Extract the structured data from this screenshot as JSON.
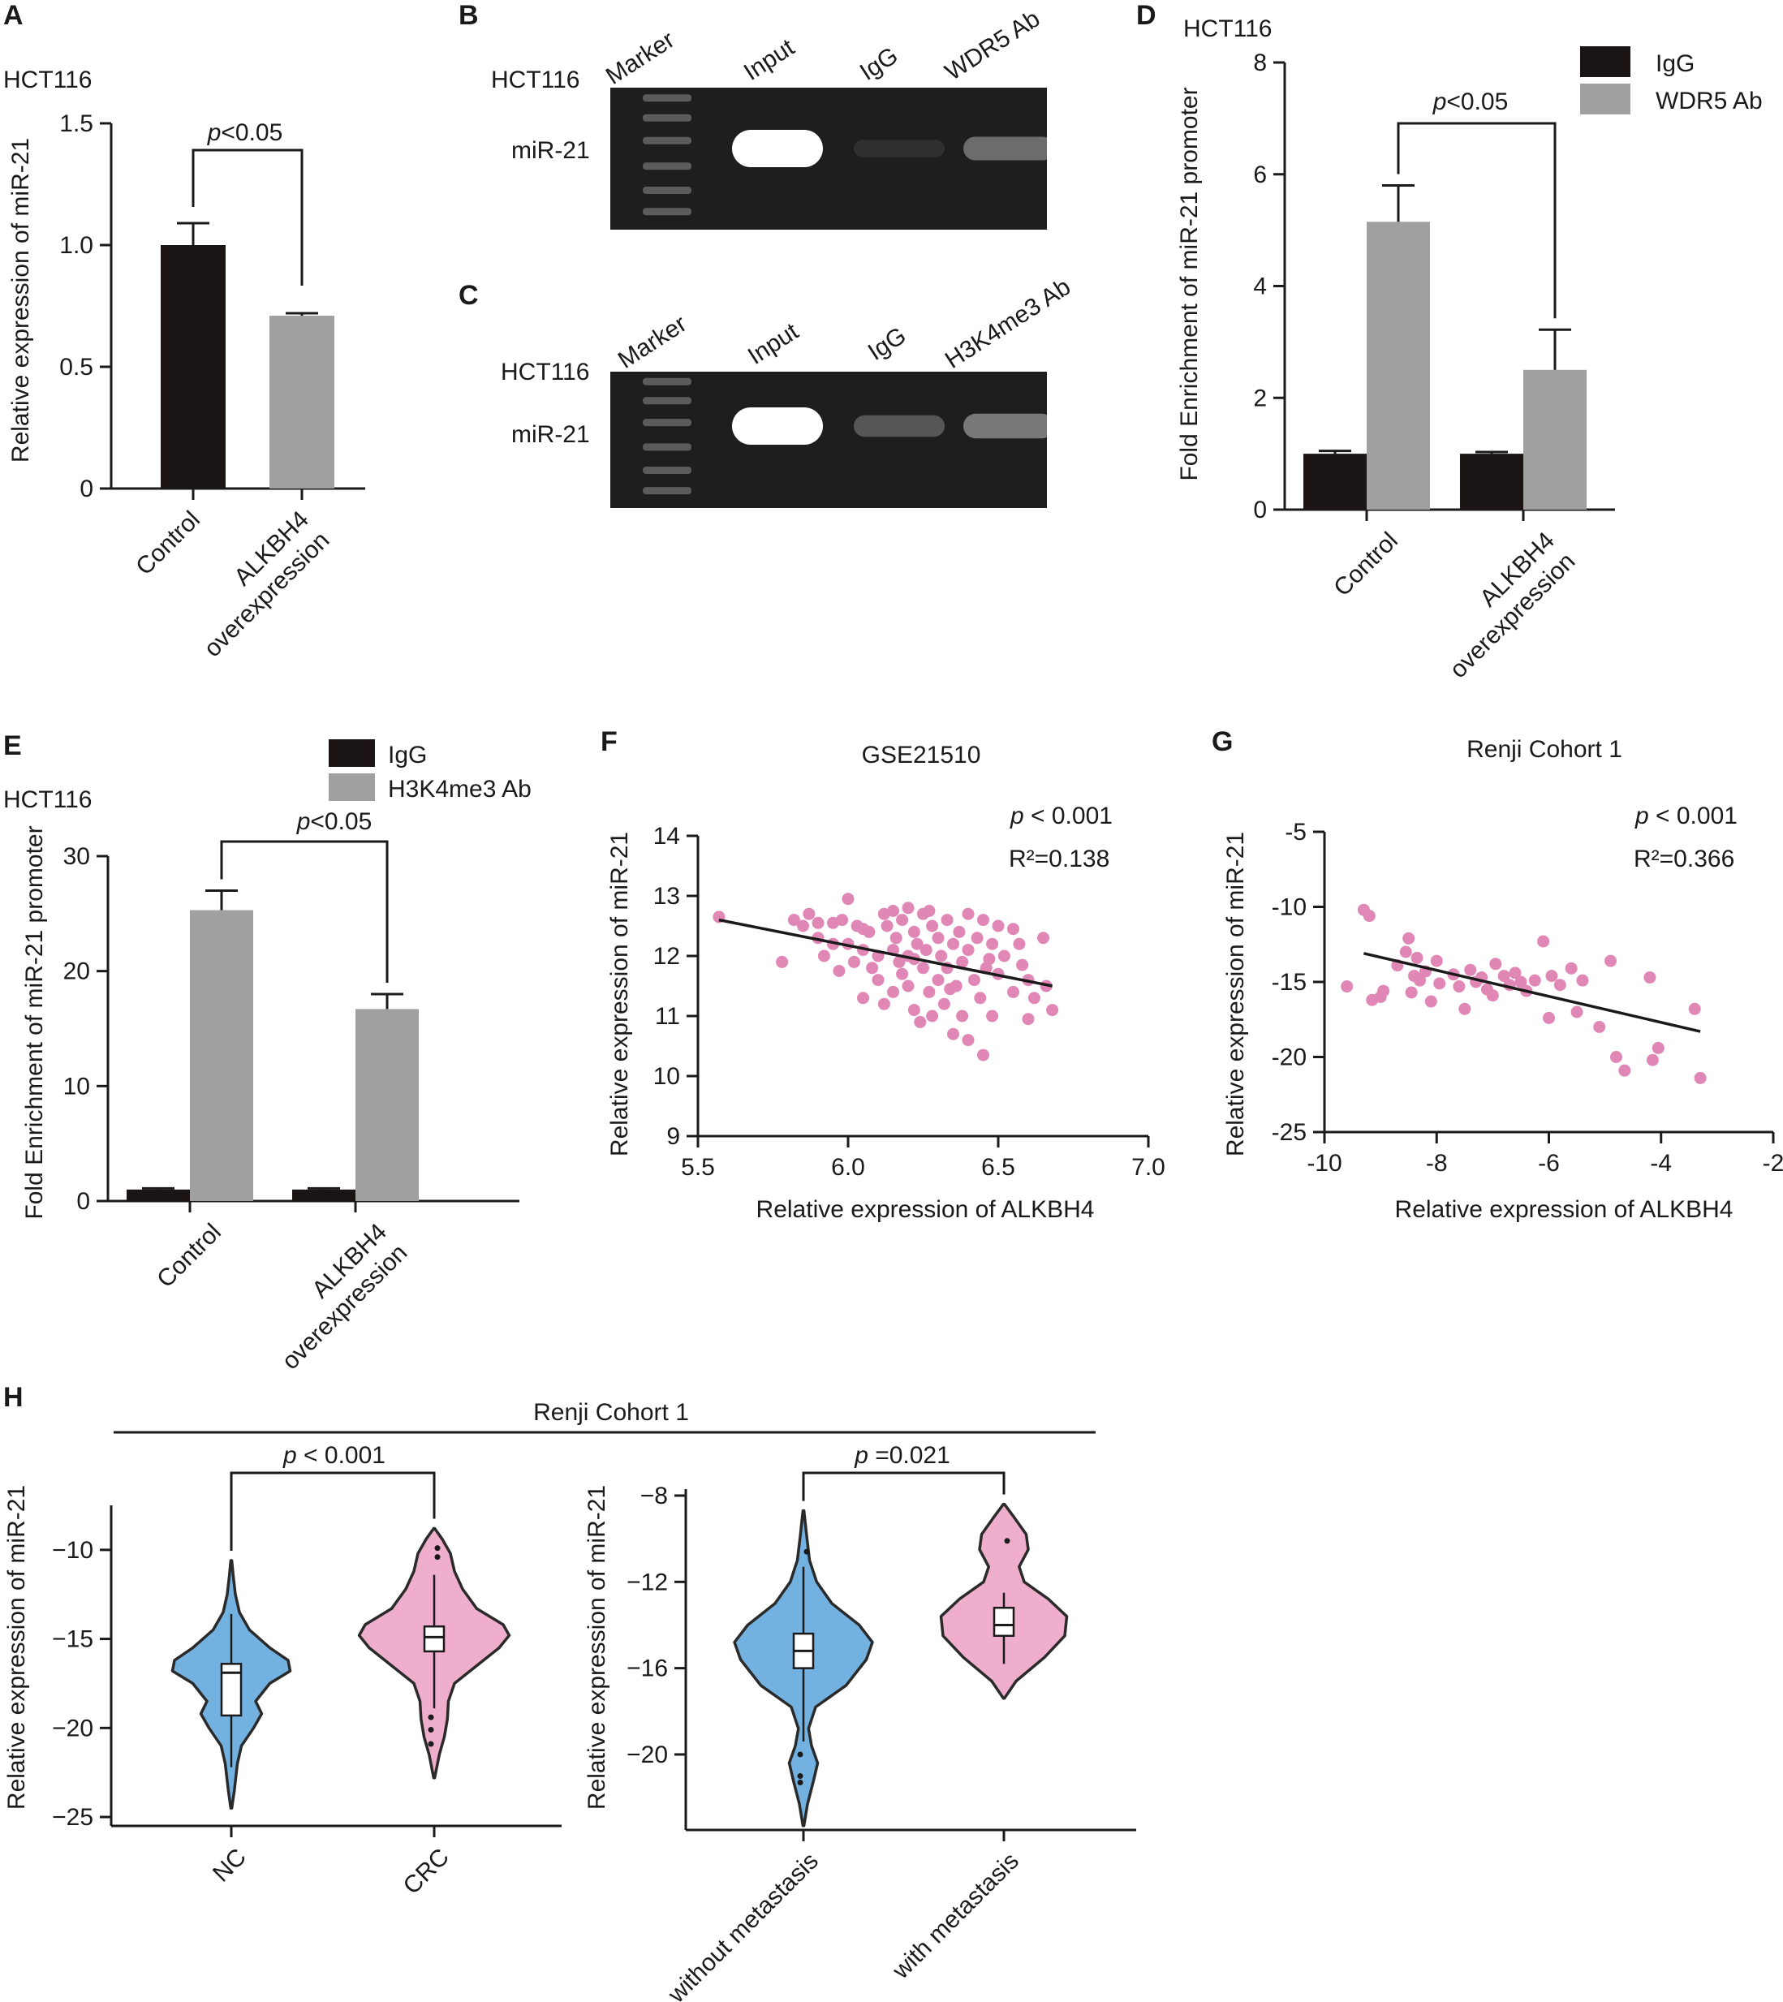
{
  "colors": {
    "black_bar": "#1a1414",
    "gray_bar": "#a0a0a0",
    "pink_point": "#e087b6",
    "violin_blue": "#73b2e0",
    "violin_pink": "#eeaecc",
    "gel_bg": "#1e1e1e",
    "band": "#ffffff"
  },
  "panelA": {
    "letter": "A",
    "cell_line": "HCT116",
    "pvalue": "p<0.05",
    "chart_data": {
      "type": "bar",
      "categories": [
        "Control",
        "ALKBH4 overexpression"
      ],
      "values": [
        1.0,
        0.71
      ],
      "errors": [
        0.09,
        0.01
      ],
      "ylabel": "Relative expression of miR-21",
      "ylim": [
        0,
        1.5
      ],
      "yticks": [
        0,
        0.5,
        1.0,
        1.5
      ],
      "ytick_labels": [
        "0",
        "0.5",
        "1.0",
        "1.5"
      ]
    },
    "xlabels": [
      [
        "Control"
      ],
      [
        "ALKBH4",
        "overexpression"
      ]
    ]
  },
  "panelB": {
    "letter": "B",
    "cell_line": "HCT116",
    "row_label": "miR-21",
    "lanes": [
      "Marker",
      "Input",
      "IgG",
      "WDR5 Ab"
    ],
    "band_intensity": [
      0,
      1.0,
      0.05,
      0.35
    ]
  },
  "panelC": {
    "letter": "C",
    "cell_line": "HCT116",
    "row_label": "miR-21",
    "lanes": [
      "Marker",
      "Input",
      "IgG",
      "H3K4me3 Ab"
    ],
    "band_intensity": [
      0,
      1.0,
      0.25,
      0.4
    ]
  },
  "panelD": {
    "letter": "D",
    "cell_line": "HCT116",
    "pvalue": "p<0.05",
    "chart_data": {
      "type": "bar",
      "categories": [
        "Control",
        "ALKBH4 overexpression"
      ],
      "series": [
        {
          "name": "IgG",
          "values": [
            1.0,
            1.0
          ],
          "errors": [
            0.05,
            0.03
          ]
        },
        {
          "name": "WDR5 Ab",
          "values": [
            5.15,
            2.5
          ],
          "errors": [
            0.65,
            0.72
          ]
        }
      ],
      "ylabel": "Fold Enrichment of miR-21 promoter",
      "ylim": [
        0,
        8
      ],
      "yticks": [
        0,
        2,
        4,
        6,
        8
      ],
      "ytick_labels": [
        "0",
        "2",
        "4",
        "6",
        "8"
      ],
      "legend": "top-right"
    },
    "xlabels": [
      [
        "Control"
      ],
      [
        "ALKBH4",
        "overexpression"
      ]
    ]
  },
  "panelE": {
    "letter": "E",
    "cell_line": "HCT116",
    "pvalue": "p<0.05",
    "chart_data": {
      "type": "bar",
      "categories": [
        "Control",
        "ALKBH4 overexpression"
      ],
      "series": [
        {
          "name": "IgG",
          "values": [
            1.0,
            1.0
          ],
          "errors": [
            0.1,
            0.1
          ]
        },
        {
          "name": "H3K4me3 Ab",
          "values": [
            25.3,
            16.7
          ],
          "errors": [
            1.7,
            1.3
          ]
        }
      ],
      "ylabel": "Fold Enrichment of miR-21 promoter",
      "ylim": [
        0,
        30
      ],
      "yticks": [
        0,
        10,
        20,
        30
      ],
      "ytick_labels": [
        "0",
        "10",
        "20",
        "30"
      ],
      "legend": "top"
    },
    "xlabels": [
      [
        "Control"
      ],
      [
        "ALKBH4",
        "overexpression"
      ]
    ]
  },
  "panelF": {
    "letter": "F",
    "chart_data": {
      "type": "scatter",
      "title": "GSE21510",
      "pvalue": "p < 0.001",
      "r2": "R²=0.138",
      "xlabel": "Relative expression of ALKBH4",
      "ylabel": "Relative expression of miR-21",
      "xlim": [
        5.5,
        7.0
      ],
      "ylim": [
        9,
        14
      ],
      "xticks": [
        5.5,
        6.0,
        6.5,
        7.0
      ],
      "xtick_labels": [
        "5.5",
        "6.0",
        "6.5",
        "7.0"
      ],
      "yticks": [
        9,
        10,
        11,
        12,
        13,
        14
      ],
      "ytick_labels": [
        "9",
        "10",
        "11",
        "12",
        "13",
        "14"
      ],
      "fit_line": [
        [
          5.57,
          12.6
        ],
        [
          6.68,
          11.5
        ]
      ],
      "points": [
        [
          5.57,
          12.65
        ],
        [
          5.78,
          11.9
        ],
        [
          5.82,
          12.6
        ],
        [
          5.85,
          12.5
        ],
        [
          5.87,
          12.7
        ],
        [
          5.9,
          12.55
        ],
        [
          5.9,
          12.3
        ],
        [
          5.92,
          12.0
        ],
        [
          5.95,
          12.55
        ],
        [
          5.95,
          12.2
        ],
        [
          5.98,
          12.6
        ],
        [
          6.0,
          12.95
        ],
        [
          6.0,
          12.2
        ],
        [
          6.02,
          11.9
        ],
        [
          6.03,
          12.5
        ],
        [
          6.05,
          12.1
        ],
        [
          6.05,
          11.3
        ],
        [
          6.07,
          12.4
        ],
        [
          6.08,
          11.8
        ],
        [
          6.1,
          12.0
        ],
        [
          6.1,
          11.6
        ],
        [
          6.12,
          12.7
        ],
        [
          6.12,
          11.2
        ],
        [
          6.13,
          12.5
        ],
        [
          6.15,
          12.1
        ],
        [
          6.15,
          11.4
        ],
        [
          6.16,
          12.3
        ],
        [
          6.17,
          11.9
        ],
        [
          6.18,
          12.6
        ],
        [
          6.18,
          11.7
        ],
        [
          6.2,
          12.8
        ],
        [
          6.2,
          12.0
        ],
        [
          6.2,
          11.5
        ],
        [
          6.22,
          12.4
        ],
        [
          6.22,
          11.1
        ],
        [
          6.23,
          12.2
        ],
        [
          6.24,
          10.9
        ],
        [
          6.25,
          12.7
        ],
        [
          6.25,
          11.8
        ],
        [
          6.26,
          12.1
        ],
        [
          6.27,
          11.4
        ],
        [
          6.28,
          12.5
        ],
        [
          6.28,
          11.0
        ],
        [
          6.3,
          12.3
        ],
        [
          6.3,
          11.6
        ],
        [
          6.31,
          12.0
        ],
        [
          6.32,
          11.2
        ],
        [
          6.33,
          12.6
        ],
        [
          6.33,
          11.8
        ],
        [
          6.35,
          12.2
        ],
        [
          6.35,
          10.7
        ],
        [
          6.36,
          11.5
        ],
        [
          6.37,
          12.4
        ],
        [
          6.38,
          11.9
        ],
        [
          6.38,
          11.0
        ],
        [
          6.4,
          12.7
        ],
        [
          6.4,
          12.1
        ],
        [
          6.4,
          10.6
        ],
        [
          6.42,
          11.6
        ],
        [
          6.43,
          12.3
        ],
        [
          6.44,
          11.3
        ],
        [
          6.45,
          12.6
        ],
        [
          6.45,
          10.35
        ],
        [
          6.46,
          11.8
        ],
        [
          6.48,
          12.2
        ],
        [
          6.48,
          11.0
        ],
        [
          6.5,
          11.7
        ],
        [
          6.5,
          12.5
        ],
        [
          6.52,
          12.0
        ],
        [
          6.55,
          11.4
        ],
        [
          6.57,
          12.2
        ],
        [
          6.6,
          11.6
        ],
        [
          6.6,
          10.95
        ],
        [
          6.62,
          11.3
        ],
        [
          6.65,
          12.3
        ],
        [
          6.66,
          11.5
        ],
        [
          6.68,
          11.1
        ],
        [
          6.55,
          12.45
        ],
        [
          6.27,
          12.75
        ],
        [
          6.15,
          12.75
        ],
        [
          6.05,
          12.45
        ],
        [
          5.97,
          11.75
        ],
        [
          6.22,
          11.95
        ],
        [
          6.34,
          11.45
        ],
        [
          6.47,
          11.95
        ],
        [
          6.58,
          11.85
        ]
      ]
    }
  },
  "panelG": {
    "letter": "G",
    "chart_data": {
      "type": "scatter",
      "title": "Renji Cohort 1",
      "pvalue": "p < 0.001",
      "r2": "R²=0.366",
      "xlabel": "Relative expression of ALKBH4",
      "ylabel": "Relative expression of miR-21",
      "xlim": [
        -10,
        -2
      ],
      "ylim": [
        -25,
        -5
      ],
      "xticks": [
        -10,
        -8,
        -6,
        -4,
        -2
      ],
      "xtick_labels": [
        "-10",
        "-8",
        "-6",
        "-4",
        "-2"
      ],
      "yticks": [
        -25,
        -20,
        -15,
        -10,
        -5
      ],
      "ytick_labels": [
        "-25",
        "-20",
        "-15",
        "-10",
        "-5"
      ],
      "fit_line": [
        [
          -9.3,
          -13.1
        ],
        [
          -3.3,
          -18.3
        ]
      ],
      "points": [
        [
          -9.6,
          -15.3
        ],
        [
          -9.3,
          -10.2
        ],
        [
          -9.2,
          -10.6
        ],
        [
          -9.15,
          -16.2
        ],
        [
          -9.0,
          -16.0
        ],
        [
          -8.95,
          -15.6
        ],
        [
          -8.7,
          -13.9
        ],
        [
          -8.55,
          -13.0
        ],
        [
          -8.5,
          -12.1
        ],
        [
          -8.45,
          -15.7
        ],
        [
          -8.4,
          -14.6
        ],
        [
          -8.35,
          -13.4
        ],
        [
          -8.3,
          -14.9
        ],
        [
          -8.2,
          -14.3
        ],
        [
          -8.1,
          -16.3
        ],
        [
          -8.0,
          -13.6
        ],
        [
          -7.95,
          -15.1
        ],
        [
          -7.7,
          -14.5
        ],
        [
          -7.6,
          -15.3
        ],
        [
          -7.5,
          -16.8
        ],
        [
          -7.4,
          -14.2
        ],
        [
          -7.3,
          -15.0
        ],
        [
          -7.2,
          -14.7
        ],
        [
          -7.1,
          -15.5
        ],
        [
          -7.0,
          -15.9
        ],
        [
          -6.95,
          -13.8
        ],
        [
          -6.8,
          -14.6
        ],
        [
          -6.7,
          -15.2
        ],
        [
          -6.6,
          -14.4
        ],
        [
          -6.5,
          -15.0
        ],
        [
          -6.4,
          -15.6
        ],
        [
          -6.25,
          -14.9
        ],
        [
          -6.1,
          -12.3
        ],
        [
          -6.0,
          -17.4
        ],
        [
          -5.95,
          -14.6
        ],
        [
          -5.8,
          -15.2
        ],
        [
          -5.6,
          -14.1
        ],
        [
          -5.5,
          -17.0
        ],
        [
          -5.4,
          -14.9
        ],
        [
          -5.1,
          -18.0
        ],
        [
          -4.9,
          -13.6
        ],
        [
          -4.8,
          -20.0
        ],
        [
          -4.65,
          -20.9
        ],
        [
          -4.2,
          -14.7
        ],
        [
          -4.15,
          -20.2
        ],
        [
          -4.05,
          -19.4
        ],
        [
          -3.4,
          -16.8
        ],
        [
          -3.3,
          -21.4
        ]
      ]
    }
  },
  "panelH": {
    "letter": "H",
    "title": "Renji Cohort 1",
    "charts": [
      {
        "type": "violin",
        "pvalue": "p < 0.001",
        "ylabel": "Relative expression of miR-21",
        "ylim": [
          -25.5,
          -7.5
        ],
        "yticks": [
          -25,
          -20,
          -15,
          -10
        ],
        "ytick_labels": [
          "−25",
          "−20",
          "−15",
          "−10"
        ],
        "categories": [
          "NC",
          "CRC"
        ],
        "groups": [
          {
            "name": "NC",
            "q1": -19.3,
            "median": -16.9,
            "q3": -16.4,
            "whisker_low": -22.2,
            "whisker_high": -13.6,
            "outliers": [],
            "range": [
              -24.5,
              -10.6
            ],
            "profile": [
              [
                -24.5,
                0.005
              ],
              [
                -23.5,
                0.03
              ],
              [
                -22,
                0.06
              ],
              [
                -21,
                0.1
              ],
              [
                -20,
                0.22
              ],
              [
                -19.2,
                0.3
              ],
              [
                -18.5,
                0.24
              ],
              [
                -17.5,
                0.38
              ],
              [
                -16.8,
                0.58
              ],
              [
                -16.2,
                0.56
              ],
              [
                -15.5,
                0.38
              ],
              [
                -14.5,
                0.18
              ],
              [
                -13.5,
                0.08
              ],
              [
                -12.5,
                0.04
              ],
              [
                -11.5,
                0.02
              ],
              [
                -10.6,
                0.005
              ]
            ]
          },
          {
            "name": "CRC",
            "q1": -15.7,
            "median": -14.9,
            "q3": -14.3,
            "whisker_low": -18.9,
            "whisker_high": -11.4,
            "outliers": [
              -9.9,
              -10.4,
              -19.4,
              -20.1,
              -20.9
            ],
            "range": [
              -22.8,
              -8.8
            ],
            "profile": [
              [
                -22.8,
                0.005
              ],
              [
                -21.5,
                0.05
              ],
              [
                -20.5,
                0.1
              ],
              [
                -19.5,
                0.13
              ],
              [
                -18.5,
                0.14
              ],
              [
                -17.5,
                0.2
              ],
              [
                -16.5,
                0.42
              ],
              [
                -15.5,
                0.64
              ],
              [
                -14.8,
                0.74
              ],
              [
                -14.2,
                0.68
              ],
              [
                -13.3,
                0.42
              ],
              [
                -12.2,
                0.28
              ],
              [
                -11.2,
                0.2
              ],
              [
                -10.2,
                0.16
              ],
              [
                -9.4,
                0.08
              ],
              [
                -8.8,
                0.005
              ]
            ]
          }
        ]
      },
      {
        "type": "violin",
        "pvalue": "p =0.021",
        "ylabel": "Relative expression of miR-21",
        "ylim": [
          -23.5,
          -7.7
        ],
        "yticks": [
          -20,
          -16,
          -12,
          -8
        ],
        "ytick_labels": [
          "−20",
          "−16",
          "−12",
          "−8"
        ],
        "categories": [
          "without metastasis",
          "with metastasis"
        ],
        "groups": [
          {
            "name": "without metastasis",
            "q1": -16.0,
            "median": -15.2,
            "q3": -14.4,
            "whisker_low": -19.4,
            "whisker_high": -11.3,
            "outliers": [
              -10.6,
              -20.0,
              -21.0,
              -21.3
            ],
            "range": [
              -23.3,
              -8.7
            ],
            "profile": [
              [
                -23.3,
                0.005
              ],
              [
                -22.3,
                0.04
              ],
              [
                -21.2,
                0.1
              ],
              [
                -20.4,
                0.14
              ],
              [
                -19.6,
                0.08
              ],
              [
                -18.8,
                0.05
              ],
              [
                -17.8,
                0.12
              ],
              [
                -16.8,
                0.42
              ],
              [
                -15.6,
                0.62
              ],
              [
                -14.8,
                0.68
              ],
              [
                -14.0,
                0.55
              ],
              [
                -13.0,
                0.28
              ],
              [
                -12.0,
                0.13
              ],
              [
                -11.0,
                0.06
              ],
              [
                -9.8,
                0.03
              ],
              [
                -8.7,
                0.005
              ]
            ]
          },
          {
            "name": "with metastasis",
            "q1": -14.5,
            "median": -14.0,
            "q3": -13.2,
            "whisker_low": -15.8,
            "whisker_high": -12.5,
            "outliers": [
              -10.1
            ],
            "range": [
              -17.4,
              -8.4
            ],
            "profile": [
              [
                -17.4,
                0.005
              ],
              [
                -16.6,
                0.12
              ],
              [
                -15.5,
                0.4
              ],
              [
                -14.5,
                0.6
              ],
              [
                -13.6,
                0.62
              ],
              [
                -12.8,
                0.44
              ],
              [
                -12.0,
                0.2
              ],
              [
                -11.3,
                0.15
              ],
              [
                -10.5,
                0.24
              ],
              [
                -9.8,
                0.22
              ],
              [
                -9.0,
                0.1
              ],
              [
                -8.4,
                0.005
              ]
            ]
          }
        ]
      }
    ]
  }
}
